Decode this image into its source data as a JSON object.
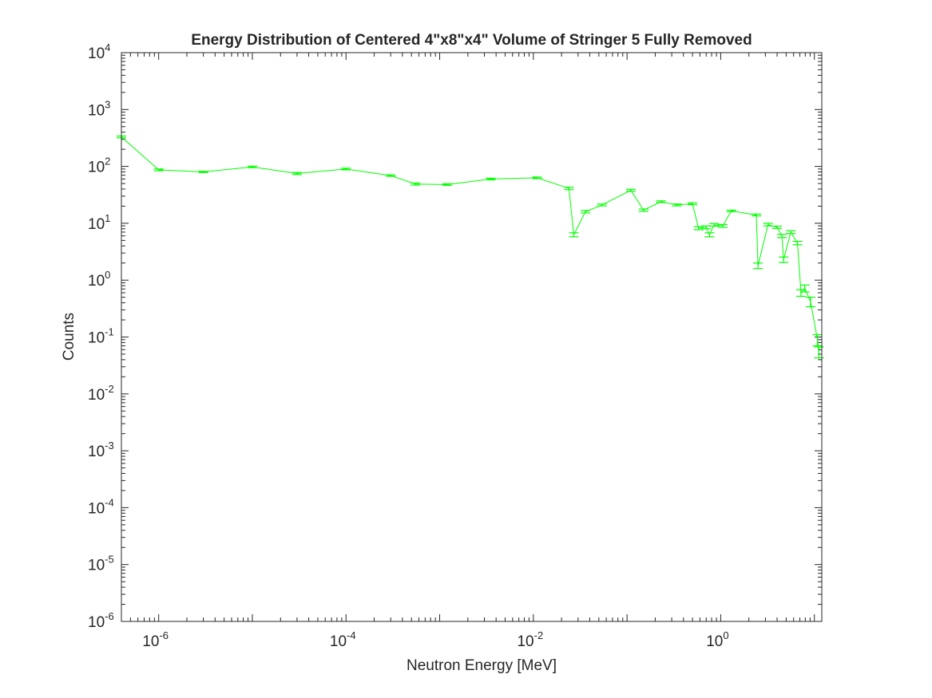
{
  "chart_data": {
    "type": "line",
    "title": "Energy Distribution of Centered 4\"x8\"x4\" Volume of Stringer 5 Fully Removed",
    "xlabel": "Neutron Energy [MeV]",
    "ylabel": "Counts",
    "xscale": "log",
    "yscale": "log",
    "xlim": [
      4e-07,
      12
    ],
    "ylim": [
      1e-06,
      10000
    ],
    "grid": false,
    "box": true,
    "x_ticks": [
      {
        "base": "10",
        "exp": "-6"
      },
      {
        "base": "10",
        "exp": "-4"
      },
      {
        "base": "10",
        "exp": "-2"
      },
      {
        "base": "10",
        "exp": "0"
      }
    ],
    "y_ticks": [
      {
        "base": "10",
        "exp": "4"
      },
      {
        "base": "10",
        "exp": "3"
      },
      {
        "base": "10",
        "exp": "2"
      },
      {
        "base": "10",
        "exp": "1"
      },
      {
        "base": "10",
        "exp": "0"
      },
      {
        "base": "10",
        "exp": "-1"
      },
      {
        "base": "10",
        "exp": "-2"
      },
      {
        "base": "10",
        "exp": "-3"
      },
      {
        "base": "10",
        "exp": "-4"
      },
      {
        "base": "10",
        "exp": "-5"
      },
      {
        "base": "10",
        "exp": "-6"
      }
    ],
    "series": [
      {
        "color": "#00ff00",
        "points": [
          {
            "x": 4e-07,
            "y": 330,
            "err": 12
          },
          {
            "x": 1e-06,
            "y": 87,
            "err": 3
          },
          {
            "x": 3e-06,
            "y": 80,
            "err": 2
          },
          {
            "x": 1e-05,
            "y": 98,
            "err": 3
          },
          {
            "x": 3e-05,
            "y": 75,
            "err": 3
          },
          {
            "x": 0.0001,
            "y": 90,
            "err": 3
          },
          {
            "x": 0.0003,
            "y": 69,
            "err": 2
          },
          {
            "x": 0.00055,
            "y": 49,
            "err": 2
          },
          {
            "x": 0.0012,
            "y": 48,
            "err": 1.5
          },
          {
            "x": 0.0035,
            "y": 60,
            "err": 2
          },
          {
            "x": 0.011,
            "y": 63,
            "err": 2
          },
          {
            "x": 0.024,
            "y": 41,
            "err": 2
          },
          {
            "x": 0.027,
            "y": 6.3,
            "err": 0.5
          },
          {
            "x": 0.036,
            "y": 16,
            "err": 0.8
          },
          {
            "x": 0.054,
            "y": 21,
            "err": 0.8
          },
          {
            "x": 0.11,
            "y": 38,
            "err": 1.5
          },
          {
            "x": 0.15,
            "y": 17,
            "err": 0.8
          },
          {
            "x": 0.23,
            "y": 24,
            "err": 0.8
          },
          {
            "x": 0.34,
            "y": 21,
            "err": 0.8
          },
          {
            "x": 0.5,
            "y": 22,
            "err": 0.8
          },
          {
            "x": 0.58,
            "y": 8.2,
            "err": 0.5
          },
          {
            "x": 0.7,
            "y": 8.5,
            "err": 0.5
          },
          {
            "x": 0.76,
            "y": 6.3,
            "err": 0.5
          },
          {
            "x": 0.85,
            "y": 9.4,
            "err": 0.5
          },
          {
            "x": 1.05,
            "y": 9,
            "err": 0.5
          },
          {
            "x": 1.3,
            "y": 16.5,
            "err": 0.5
          },
          {
            "x": 2.4,
            "y": 14,
            "err": 0.5
          },
          {
            "x": 2.5,
            "y": 1.8,
            "err": 0.2
          },
          {
            "x": 3.2,
            "y": 9.5,
            "err": 0.5
          },
          {
            "x": 4.0,
            "y": 8.5,
            "err": 0.4
          },
          {
            "x": 4.5,
            "y": 6.0,
            "err": 0.4
          },
          {
            "x": 4.7,
            "y": 2.3,
            "err": 0.25
          },
          {
            "x": 5.6,
            "y": 7.0,
            "err": 0.4
          },
          {
            "x": 6.6,
            "y": 4.5,
            "err": 0.3
          },
          {
            "x": 7.2,
            "y": 0.6,
            "err": 0.08
          },
          {
            "x": 7.9,
            "y": 0.72,
            "err": 0.1
          },
          {
            "x": 9.1,
            "y": 0.42,
            "err": 0.08
          },
          {
            "x": 10.8,
            "y": 0.09,
            "err": 0.02
          },
          {
            "x": 11.2,
            "y": 0.055,
            "err": 0.012
          }
        ]
      }
    ]
  }
}
